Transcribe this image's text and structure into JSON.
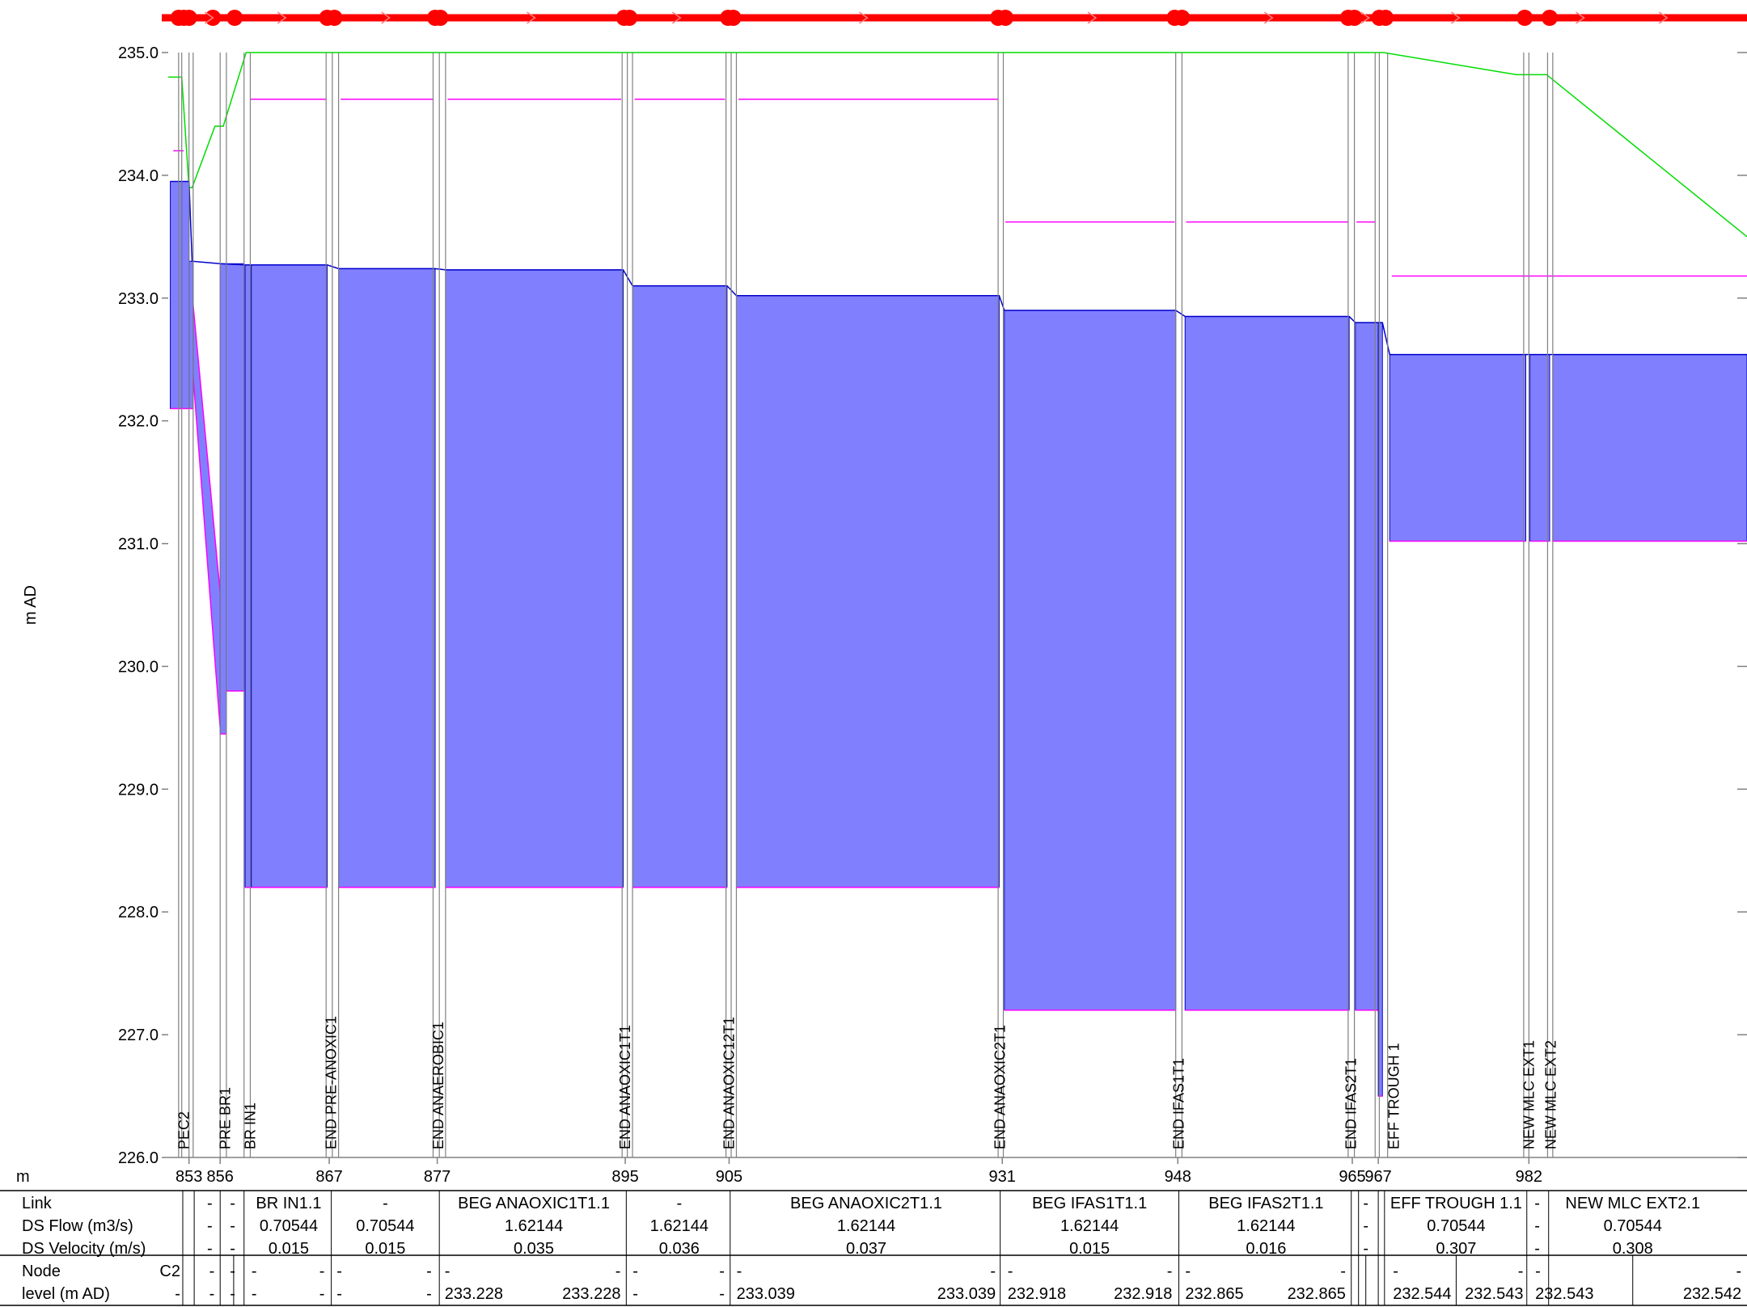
{
  "chart_data": {
    "type": "area",
    "title": "",
    "xlabel": "m",
    "ylabel": "m AD",
    "ylim": [
      226.0,
      235.0
    ],
    "xlim": [
      851.0,
      1003.0
    ],
    "yticks": [
      "226.0",
      "227.0",
      "228.0",
      "229.0",
      "230.0",
      "231.0",
      "232.0",
      "233.0",
      "234.0",
      "235.0"
    ],
    "xticks": [
      {
        "v": 853.0,
        "label": "853"
      },
      {
        "v": 856.0,
        "label": "856"
      },
      {
        "v": 866.5,
        "label": "867"
      },
      {
        "v": 876.9,
        "label": "877"
      },
      {
        "v": 895.0,
        "label": "895"
      },
      {
        "v": 905.0,
        "label": "905"
      },
      {
        "v": 931.3,
        "label": "931"
      },
      {
        "v": 948.2,
        "label": "948"
      },
      {
        "v": 965.0,
        "label": "965"
      },
      {
        "v": 967.5,
        "label": "967"
      },
      {
        "v": 982.0,
        "label": "982"
      }
    ],
    "colors": {
      "fill": "#8080ff",
      "outline": "#0000cc",
      "ground": "#00dd00",
      "soffit": "#ff00ff",
      "link_bar": "#ff0000",
      "grid": "#808080"
    },
    "ground_level": {
      "x": [
        851.0,
        852.0,
        852.0,
        852.3,
        852.3,
        853.0,
        853.3,
        855.5,
        856.3,
        858.5,
        968.0,
        980.8,
        983.7,
        1003.0
      ],
      "y": [
        234.8,
        234.8,
        234.8,
        234.8,
        234.8,
        233.9,
        233.9,
        234.4,
        234.4,
        235.0,
        235.0,
        234.82,
        234.82,
        233.5
      ]
    },
    "structures": [
      {
        "x0": 851.2,
        "x1": 852.3,
        "top": 233.95,
        "bottom": 232.1
      },
      {
        "x0": 852.3,
        "x1": 853.0,
        "top": 233.95,
        "bottom": 232.1
      },
      {
        "x0": 853.0,
        "x1": 853.4,
        "top": 233.3,
        "bottom": 232.1
      },
      {
        "x0": 856.0,
        "x1": 856.6,
        "top": 233.28,
        "bottom": 229.45
      },
      {
        "x0": 856.6,
        "x1": 858.3,
        "top": 233.28,
        "bottom": 229.8
      },
      {
        "x0": 858.4,
        "x1": 859.0,
        "top": 233.27,
        "bottom": 228.2
      },
      {
        "x0": 859.0,
        "x1": 866.3,
        "top": 233.27,
        "bottom": 228.2
      },
      {
        "x0": 867.4,
        "x1": 876.7,
        "top": 233.24,
        "bottom": 228.2
      },
      {
        "x0": 877.7,
        "x1": 894.8,
        "top": 233.23,
        "bottom": 228.2
      },
      {
        "x0": 895.7,
        "x1": 904.8,
        "top": 233.1,
        "bottom": 228.2
      },
      {
        "x0": 905.7,
        "x1": 931.0,
        "top": 233.02,
        "bottom": 228.2
      },
      {
        "x0": 931.5,
        "x1": 948.0,
        "top": 232.9,
        "bottom": 227.2
      },
      {
        "x0": 948.9,
        "x1": 964.7,
        "top": 232.85,
        "bottom": 227.2
      },
      {
        "x0": 965.3,
        "x1": 967.5,
        "top": 232.8,
        "bottom": 227.2
      },
      {
        "x0": 967.5,
        "x1": 967.9,
        "top": 232.8,
        "bottom": 226.5
      },
      {
        "x0": 968.6,
        "x1": 981.7,
        "top": 232.54,
        "bottom": 231.02
      },
      {
        "x0": 982.1,
        "x1": 984.0,
        "top": 232.54,
        "bottom": 231.02
      },
      {
        "x0": 984.3,
        "x1": 1003.0,
        "top": 232.54,
        "bottom": 231.02
      }
    ],
    "sloped_pipes": [
      {
        "x": [
          853.0,
          856.0
        ],
        "top": [
          233.3,
          230.6
        ],
        "bottom": [
          232.8,
          229.5
        ]
      }
    ],
    "hgl": {
      "x": [
        851.2,
        853.0,
        853.3,
        856.0,
        858.4,
        866.3,
        867.4,
        876.7,
        877.7,
        894.8,
        895.7,
        904.8,
        905.7,
        931.0,
        931.5,
        948.0,
        948.9,
        964.7,
        965.3,
        967.9,
        968.6,
        1003.0
      ],
      "y": [
        233.95,
        233.95,
        233.3,
        233.28,
        233.27,
        233.27,
        233.24,
        233.24,
        233.23,
        233.23,
        233.1,
        233.1,
        233.02,
        233.02,
        232.9,
        232.9,
        232.85,
        232.85,
        232.8,
        232.8,
        232.54,
        232.54
      ]
    },
    "soffits": [
      {
        "x0": 851.5,
        "x1": 852.5,
        "y": 234.2
      },
      {
        "x0": 858.9,
        "x1": 866.2,
        "y": 234.62
      },
      {
        "x0": 867.6,
        "x1": 876.5,
        "y": 234.62
      },
      {
        "x0": 877.9,
        "x1": 894.6,
        "y": 234.62
      },
      {
        "x0": 895.9,
        "x1": 904.6,
        "y": 234.62
      },
      {
        "x0": 905.9,
        "x1": 930.9,
        "y": 234.62
      },
      {
        "x0": 931.6,
        "x1": 947.9,
        "y": 233.62
      },
      {
        "x0": 949.0,
        "x1": 964.6,
        "y": 233.62
      },
      {
        "x0": 965.4,
        "x1": 967.2,
        "y": 233.62
      },
      {
        "x0": 968.8,
        "x1": 1003.0,
        "y": 233.18
      }
    ],
    "verticals": [
      852.0,
      852.3,
      853.0,
      853.4,
      856.0,
      856.6,
      858.3,
      858.9,
      866.2,
      866.8,
      867.4,
      876.5,
      877.1,
      877.7,
      894.7,
      895.2,
      895.7,
      904.7,
      905.2,
      905.7,
      930.9,
      931.4,
      948.0,
      948.6,
      964.6,
      965.2,
      967.2,
      967.6,
      968.4,
      981.5,
      982.0,
      983.8,
      984.3
    ],
    "node_labels": [
      {
        "x": 852.5,
        "label": "PEC2"
      },
      {
        "x": 856.5,
        "label": "PRE BR1"
      },
      {
        "x": 858.9,
        "label": "BR IN1"
      },
      {
        "x": 866.7,
        "label": "END PRE-ANOXIC1"
      },
      {
        "x": 877.0,
        "label": "END ANAEROBIC1"
      },
      {
        "x": 895.0,
        "label": "END ANAOXIC1T1"
      },
      {
        "x": 905.0,
        "label": "END ANAOXIC12T1"
      },
      {
        "x": 931.1,
        "label": "END ANAOXIC2T1"
      },
      {
        "x": 948.3,
        "label": "END IFAS1T1"
      },
      {
        "x": 964.9,
        "label": "END IFAS2T1"
      },
      {
        "x": 969.0,
        "label": "EFF TROUGH 1"
      },
      {
        "x": 982.0,
        "label": "NEW MLC EXT1"
      },
      {
        "x": 984.1,
        "label": "NEW MLC EXT2"
      }
    ],
    "link_nodes": [
      852.0,
      852.5,
      853.0,
      855.3,
      857.4,
      866.3,
      867.0,
      876.7,
      877.2,
      894.9,
      895.4,
      904.9,
      905.4,
      930.9,
      931.6,
      947.9,
      948.6,
      964.6,
      965.2,
      967.6,
      968.2,
      981.6,
      984.0
    ],
    "link_arrows": [
      855.0,
      862.0,
      872.0,
      886.0,
      900.0,
      918.0,
      940.0,
      957.0,
      966.3,
      975.0,
      987.0,
      995.0
    ]
  },
  "table": {
    "row_labels": {
      "link": "Link",
      "flow": "DS Flow  (m3/s)",
      "velocity": "DS Velocity  (m/s)",
      "node": "Node",
      "level": "level (m AD)"
    },
    "link_cells": [
      {
        "x": 855.0,
        "text": "-"
      },
      {
        "x": 857.2,
        "text": "-"
      },
      {
        "x": 862.6,
        "text": "BR IN1.1"
      },
      {
        "x": 871.9,
        "text": "-"
      },
      {
        "x": 886.2,
        "text": "BEG ANAOXIC1T1.1"
      },
      {
        "x": 900.2,
        "text": "-"
      },
      {
        "x": 918.2,
        "text": "BEG ANAOXIC2T1.1"
      },
      {
        "x": 939.7,
        "text": "BEG IFAS1T1.1"
      },
      {
        "x": 956.7,
        "text": "BEG IFAS2T1.1"
      },
      {
        "x": 966.3,
        "text": "-"
      },
      {
        "x": 975.0,
        "text": "EFF TROUGH 1.1"
      },
      {
        "x": 982.8,
        "text": "-"
      },
      {
        "x": 992.0,
        "text": "NEW MLC EXT2.1"
      }
    ],
    "flow_cells": [
      {
        "x": 855.0,
        "text": "-"
      },
      {
        "x": 857.2,
        "text": "-"
      },
      {
        "x": 862.6,
        "text": "0.70544"
      },
      {
        "x": 871.9,
        "text": "0.70544"
      },
      {
        "x": 886.2,
        "text": "1.62144"
      },
      {
        "x": 900.2,
        "text": "1.62144"
      },
      {
        "x": 918.2,
        "text": "1.62144"
      },
      {
        "x": 939.7,
        "text": "1.62144"
      },
      {
        "x": 956.7,
        "text": "1.62144"
      },
      {
        "x": 966.3,
        "text": "-"
      },
      {
        "x": 975.0,
        "text": "0.70544"
      },
      {
        "x": 982.8,
        "text": "-"
      },
      {
        "x": 992.0,
        "text": "0.70544"
      }
    ],
    "velocity_cells": [
      {
        "x": 855.0,
        "text": "-"
      },
      {
        "x": 857.2,
        "text": "-"
      },
      {
        "x": 862.6,
        "text": "0.015"
      },
      {
        "x": 871.9,
        "text": "0.015"
      },
      {
        "x": 886.2,
        "text": "0.035"
      },
      {
        "x": 900.2,
        "text": "0.036"
      },
      {
        "x": 918.2,
        "text": "0.037"
      },
      {
        "x": 939.7,
        "text": "0.015"
      },
      {
        "x": 956.7,
        "text": "0.016"
      },
      {
        "x": 966.3,
        "text": "-"
      },
      {
        "x": 975.0,
        "text": "0.307"
      },
      {
        "x": 982.8,
        "text": "-"
      },
      {
        "x": 992.0,
        "text": "0.308"
      }
    ],
    "node_cells": [
      {
        "x": 852.4,
        "text": "C2",
        "anchor": "end"
      },
      {
        "x": 855.2,
        "text": "-"
      },
      {
        "x": 857.2,
        "text": "-"
      },
      {
        "x": 858.7,
        "text": "-",
        "anchor": "start"
      },
      {
        "x": 866.3,
        "text": "-",
        "anchor": "end"
      },
      {
        "x": 866.9,
        "text": "-",
        "anchor": "start"
      },
      {
        "x": 876.6,
        "text": "-",
        "anchor": "end"
      },
      {
        "x": 877.3,
        "text": "-",
        "anchor": "start"
      },
      {
        "x": 894.8,
        "text": "-",
        "anchor": "end"
      },
      {
        "x": 895.4,
        "text": "-",
        "anchor": "start"
      },
      {
        "x": 904.8,
        "text": "-",
        "anchor": "end"
      },
      {
        "x": 905.4,
        "text": "-",
        "anchor": "start"
      },
      {
        "x": 930.9,
        "text": "-",
        "anchor": "end"
      },
      {
        "x": 931.5,
        "text": "-",
        "anchor": "start"
      },
      {
        "x": 947.9,
        "text": "-",
        "anchor": "end"
      },
      {
        "x": 948.6,
        "text": "-",
        "anchor": "start"
      },
      {
        "x": 964.6,
        "text": "-",
        "anchor": "end"
      },
      {
        "x": 968.6,
        "text": "-",
        "anchor": "start"
      },
      {
        "x": 981.7,
        "text": "-",
        "anchor": "end"
      },
      {
        "x": 982.3,
        "text": "-",
        "anchor": "start"
      },
      {
        "x": 1002.7,
        "text": "-",
        "anchor": "end"
      }
    ],
    "level_cells": [
      {
        "x": 852.4,
        "text": "-",
        "anchor": "end"
      },
      {
        "x": 855.2,
        "text": "-"
      },
      {
        "x": 857.2,
        "text": "-"
      },
      {
        "x": 858.7,
        "text": "-",
        "anchor": "start"
      },
      {
        "x": 866.3,
        "text": "-",
        "anchor": "end"
      },
      {
        "x": 866.9,
        "text": "-",
        "anchor": "start"
      },
      {
        "x": 876.6,
        "text": "-",
        "anchor": "end"
      },
      {
        "x": 877.3,
        "text": "233.228",
        "anchor": "start"
      },
      {
        "x": 894.8,
        "text": "233.228",
        "anchor": "end"
      },
      {
        "x": 895.4,
        "text": "-",
        "anchor": "start"
      },
      {
        "x": 904.8,
        "text": "-",
        "anchor": "end"
      },
      {
        "x": 905.4,
        "text": "233.039",
        "anchor": "start"
      },
      {
        "x": 930.9,
        "text": "233.039",
        "anchor": "end"
      },
      {
        "x": 931.5,
        "text": "232.918",
        "anchor": "start"
      },
      {
        "x": 947.9,
        "text": "232.918",
        "anchor": "end"
      },
      {
        "x": 948.6,
        "text": "232.865",
        "anchor": "start"
      },
      {
        "x": 964.6,
        "text": "232.865",
        "anchor": "end"
      },
      {
        "x": 968.6,
        "text": "232.544",
        "anchor": "start"
      },
      {
        "x": 981.7,
        "text": "232.543",
        "anchor": "end"
      },
      {
        "x": 982.3,
        "text": "232.543",
        "anchor": "start"
      },
      {
        "x": 1002.7,
        "text": "232.542",
        "anchor": "end"
      }
    ],
    "link_dividers": [
      852.4,
      853.5,
      856.0,
      858.3,
      866.7,
      877.1,
      895.1,
      905.1,
      931.1,
      948.3,
      964.9,
      965.6,
      967.5,
      968.1,
      981.8,
      983.9
    ],
    "node_dividers": [
      852.4,
      853.5,
      856.0,
      857.3,
      858.3,
      866.7,
      877.1,
      895.1,
      905.1,
      931.1,
      948.3,
      964.9,
      965.6,
      966.3,
      967.5,
      968.1,
      975.0,
      981.8,
      983.9,
      992.0
    ]
  }
}
